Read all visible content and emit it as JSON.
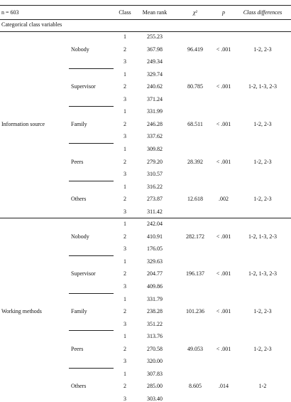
{
  "header": {
    "n": "n = 603",
    "columns": [
      "Class",
      "Mean rank",
      "χ²",
      "p",
      "Class differences"
    ]
  },
  "section_title": "Categorical class variables",
  "sections": [
    {
      "name": "Information source",
      "groups": [
        {
          "name": "Nobody",
          "chi2": "96.419",
          "p": "< .001",
          "diff": "1-2, 2-3",
          "rows": [
            {
              "class": "1",
              "mean": "255.23"
            },
            {
              "class": "2",
              "mean": "367.98"
            },
            {
              "class": "3",
              "mean": "249.34"
            }
          ]
        },
        {
          "name": "Supervisor",
          "chi2": "80.785",
          "p": "< .001",
          "diff": "1-2, 1-3, 2-3",
          "rows": [
            {
              "class": "1",
              "mean": "329.74"
            },
            {
              "class": "2",
              "mean": "240.62"
            },
            {
              "class": "3",
              "mean": "371.24"
            }
          ]
        },
        {
          "name": "Family",
          "chi2": "68.511",
          "p": "< .001",
          "diff": "1-2, 2-3",
          "rows": [
            {
              "class": "1",
              "mean": "331.99"
            },
            {
              "class": "2",
              "mean": "246.28"
            },
            {
              "class": "3",
              "mean": "337.62"
            }
          ]
        },
        {
          "name": "Peers",
          "chi2": "28.392",
          "p": "< .001",
          "diff": "1-2, 2-3",
          "rows": [
            {
              "class": "1",
              "mean": "309.82"
            },
            {
              "class": "2",
              "mean": "279.20"
            },
            {
              "class": "3",
              "mean": "310.57"
            }
          ]
        },
        {
          "name": "Others",
          "chi2": "12.618",
          "p": ".002",
          "diff": "1-2, 2-3",
          "rows": [
            {
              "class": "1",
              "mean": "316.22"
            },
            {
              "class": "2",
              "mean": "273.87"
            },
            {
              "class": "3",
              "mean": "311.42"
            }
          ]
        }
      ]
    },
    {
      "name": "Working methods",
      "groups": [
        {
          "name": "Nobody",
          "chi2": "282.172",
          "p": "< .001",
          "diff": "1-2, 1-3, 2-3",
          "rows": [
            {
              "class": "1",
              "mean": "242.04"
            },
            {
              "class": "2",
              "mean": "410.91"
            },
            {
              "class": "3",
              "mean": "176.05"
            }
          ]
        },
        {
          "name": "Supervisor",
          "chi2": "196.137",
          "p": "< .001",
          "diff": "1-2, 1-3, 2-3",
          "rows": [
            {
              "class": "1",
              "mean": "329.63"
            },
            {
              "class": "2",
              "mean": "204.77"
            },
            {
              "class": "3",
              "mean": "409.86"
            }
          ]
        },
        {
          "name": "Family",
          "chi2": "101.236",
          "p": "< .001",
          "diff": "1-2, 2-3",
          "rows": [
            {
              "class": "1",
              "mean": "331.79"
            },
            {
              "class": "2",
              "mean": "238.28"
            },
            {
              "class": "3",
              "mean": "351.22"
            }
          ]
        },
        {
          "name": "Peers",
          "chi2": "49.053",
          "p": "< .001",
          "diff": "1-2, 2-3",
          "rows": [
            {
              "class": "1",
              "mean": "313.76"
            },
            {
              "class": "2",
              "mean": "270.58"
            },
            {
              "class": "3",
              "mean": "320.00"
            }
          ]
        },
        {
          "name": "Others",
          "chi2": "8.605",
          "p": ".014",
          "diff": "1-2",
          "rows": [
            {
              "class": "1",
              "mean": "307.83"
            },
            {
              "class": "2",
              "mean": "285.00"
            },
            {
              "class": "3",
              "mean": "303.40"
            }
          ]
        }
      ]
    }
  ]
}
